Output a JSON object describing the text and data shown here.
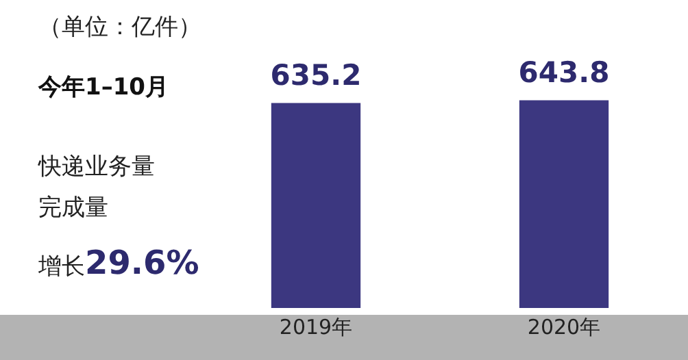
{
  "chart_data": {
    "type": "bar",
    "categories": [
      "2019年",
      "2020年"
    ],
    "series": [
      {
        "color": "#3c3780",
        "values": [
          635.2,
          643.8
        ]
      }
    ],
    "tick_labels": "x",
    "grid": false,
    "legend": false,
    "data_labels": true,
    "annotations": [
      "（单位：亿件）",
      "今年1–10月",
      "快递业务量",
      "完成量",
      "增长29.6%"
    ]
  }
}
